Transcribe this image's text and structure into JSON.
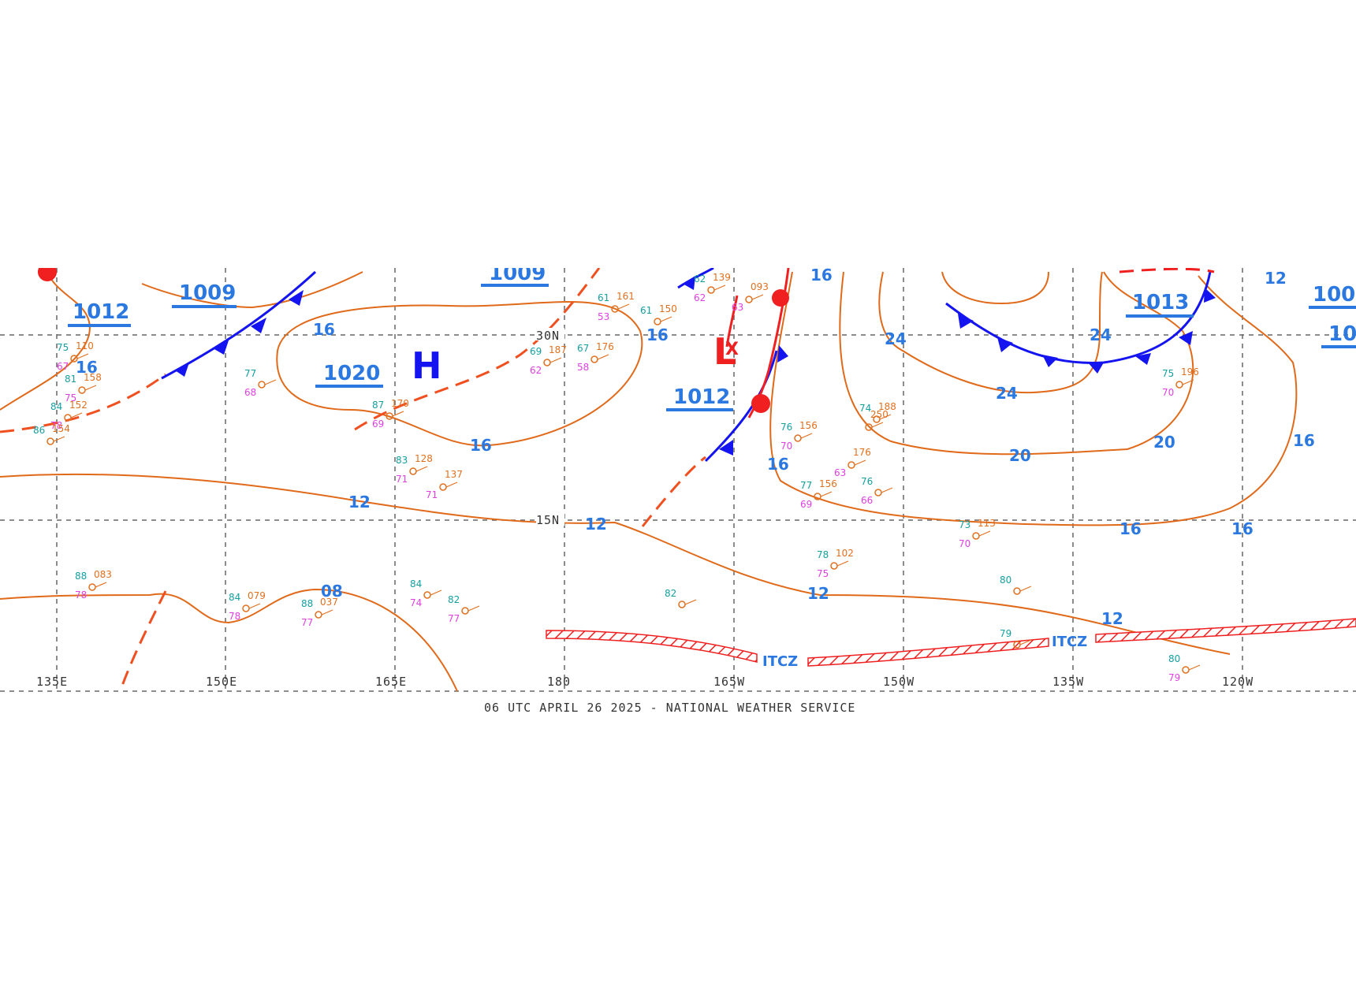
{
  "caption": "06 UTC APRIL 26 2025 - NATIONAL WEATHER SERVICE",
  "lon_labels": [
    "135E",
    "150E",
    "165E",
    "180",
    "165W",
    "150W",
    "135W",
    "120W"
  ],
  "lat_labels": [
    "30N",
    "15N"
  ],
  "pressure_labels": [
    {
      "id": "p1",
      "text": "1012"
    },
    {
      "id": "p2",
      "text": "1009"
    },
    {
      "id": "p3",
      "text": "1020"
    },
    {
      "id": "p4",
      "text": "1009"
    },
    {
      "id": "p5",
      "text": "1012"
    },
    {
      "id": "p6",
      "text": "1013"
    },
    {
      "id": "p7",
      "text": "100"
    },
    {
      "id": "p8",
      "text": "10"
    }
  ],
  "centers": {
    "high": "H",
    "low": "L",
    "low_mark": "X"
  },
  "isobar_values": [
    {
      "id": "c1",
      "text": "16"
    },
    {
      "id": "c2",
      "text": "16"
    },
    {
      "id": "c3",
      "text": "16"
    },
    {
      "id": "c4",
      "text": "16"
    },
    {
      "id": "c5",
      "text": "16"
    },
    {
      "id": "c6",
      "text": "16"
    },
    {
      "id": "c7",
      "text": "24"
    },
    {
      "id": "c8",
      "text": "24"
    },
    {
      "id": "c9",
      "text": "24"
    },
    {
      "id": "c10",
      "text": "20"
    },
    {
      "id": "c11",
      "text": "20"
    },
    {
      "id": "c12",
      "text": "16"
    },
    {
      "id": "c13",
      "text": "16"
    },
    {
      "id": "c14",
      "text": "16"
    },
    {
      "id": "c15",
      "text": "12"
    },
    {
      "id": "c16",
      "text": "12"
    },
    {
      "id": "c17",
      "text": "12"
    },
    {
      "id": "c18",
      "text": "12"
    },
    {
      "id": "c19",
      "text": "08"
    },
    {
      "id": "c20",
      "text": "12"
    }
  ],
  "itcz_label": "ITCZ",
  "stations": [
    {
      "t": "77",
      "d": "68",
      "p": ""
    },
    {
      "t": "87",
      "d": "69",
      "p": "170"
    },
    {
      "t": "83",
      "d": "71",
      "p": "128"
    },
    {
      "t": "",
      "d": "71",
      "p": "137"
    },
    {
      "t": "69",
      "d": "62",
      "p": "187"
    },
    {
      "t": "67",
      "d": "58",
      "p": "176"
    },
    {
      "t": "61",
      "d": "53",
      "p": "161"
    },
    {
      "t": "61",
      "d": "",
      "p": "150"
    },
    {
      "t": "62",
      "d": "62",
      "p": "139"
    },
    {
      "t": "",
      "d": "63",
      "p": "093"
    },
    {
      "t": "76",
      "d": "70",
      "p": "156"
    },
    {
      "t": "74",
      "d": "",
      "p": "188"
    },
    {
      "t": "",
      "d": "",
      "p": "250"
    },
    {
      "t": "",
      "d": "63",
      "p": "176"
    },
    {
      "t": "76",
      "d": "66",
      "p": ""
    },
    {
      "t": "77",
      "d": "69",
      "p": "156"
    },
    {
      "t": "78",
      "d": "75",
      "p": "102"
    },
    {
      "t": "75",
      "d": "70",
      "p": "196"
    },
    {
      "t": "73",
      "d": "70",
      "p": "113"
    },
    {
      "t": "80",
      "d": "",
      "p": ""
    },
    {
      "t": "79",
      "d": "",
      "p": ""
    },
    {
      "t": "80",
      "d": "79",
      "p": ""
    },
    {
      "t": "82",
      "d": "",
      "p": ""
    },
    {
      "t": "84",
      "d": "74",
      "p": ""
    },
    {
      "t": "82",
      "d": "77",
      "p": ""
    },
    {
      "t": "88",
      "d": "77",
      "p": "037"
    },
    {
      "t": "84",
      "d": "78",
      "p": "079"
    },
    {
      "t": "88",
      "d": "78",
      "p": "083"
    },
    {
      "t": "75",
      "d": "67",
      "p": "110"
    },
    {
      "t": "81",
      "d": "75",
      "p": "158"
    },
    {
      "t": "84",
      "d": "78",
      "p": "152"
    },
    {
      "t": "86",
      "d": "",
      "p": "154"
    }
  ],
  "colors": {
    "isobar": "#e06a1a",
    "cold_front": "#1414f0",
    "warm_front": "#f02020",
    "pressure_label": "#2a78e0",
    "high": "#1414f0",
    "low": "#f02020"
  }
}
